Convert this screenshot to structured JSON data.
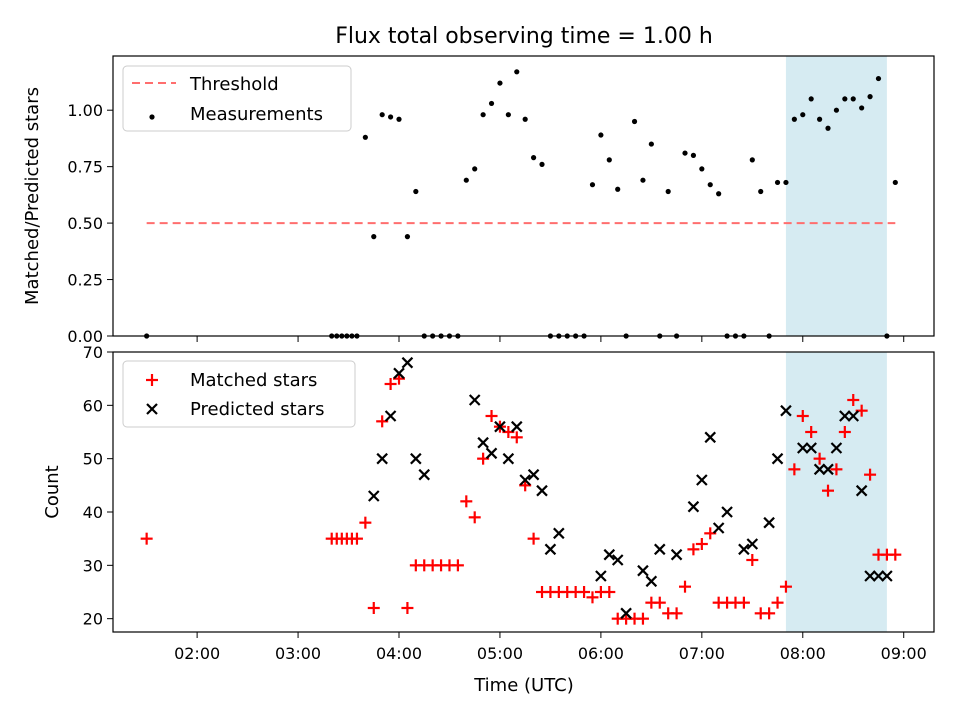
{
  "figure": {
    "title": "Flux total observing time = 1.00 h",
    "xlabel": "Time (UTC)"
  },
  "colors": {
    "threshold": "#ff6e6e",
    "measurement": "#000000",
    "matched": "#ff0000",
    "predicted": "#000000",
    "highlight": "#add8e6"
  },
  "chart_data": [
    {
      "type": "scatter",
      "title": "Flux total observing time = 1.00 h",
      "ylabel": "Matched/Predicted stars",
      "xlim": [
        "01:10",
        "09:18"
      ],
      "ylim": [
        0,
        1.24
      ],
      "x_ticks": [],
      "y_ticks": [
        0.0,
        0.25,
        0.5,
        0.75,
        1.0
      ],
      "y_tick_labels": [
        "0.00",
        "0.25",
        "0.50",
        "0.75",
        "1.00"
      ],
      "legend": {
        "placement": "top-left",
        "entries": [
          "Threshold",
          "Measurements"
        ]
      },
      "highlight_span": [
        "07:50",
        "08:50"
      ],
      "threshold": {
        "name": "Threshold",
        "y": 0.5,
        "x_range": [
          "01:30",
          "08:55"
        ]
      },
      "series": [
        {
          "name": "Measurements",
          "x": [
            "01:30",
            "03:20",
            "03:23",
            "03:26",
            "03:29",
            "03:32",
            "03:35",
            "03:40",
            "03:45",
            "03:50",
            "03:55",
            "04:00",
            "04:05",
            "04:10",
            "04:15",
            "04:20",
            "04:25",
            "04:30",
            "04:35",
            "04:40",
            "04:45",
            "04:50",
            "04:55",
            "05:00",
            "05:05",
            "05:10",
            "05:15",
            "05:20",
            "05:25",
            "05:30",
            "05:35",
            "05:40",
            "05:45",
            "05:50",
            "05:55",
            "06:00",
            "06:05",
            "06:10",
            "06:15",
            "06:20",
            "06:25",
            "06:30",
            "06:35",
            "06:40",
            "06:45",
            "06:50",
            "06:55",
            "07:00",
            "07:05",
            "07:10",
            "07:15",
            "07:20",
            "07:25",
            "07:30",
            "07:35",
            "07:40",
            "07:45",
            "07:50",
            "07:55",
            "08:00",
            "08:05",
            "08:10",
            "08:15",
            "08:20",
            "08:25",
            "08:30",
            "08:35",
            "08:40",
            "08:45",
            "08:50",
            "08:55"
          ],
          "y": [
            0,
            0,
            0,
            0,
            0,
            0,
            0,
            0.88,
            0.44,
            0.98,
            0.97,
            0.96,
            0.44,
            0.64,
            0,
            0,
            0,
            0,
            0,
            0.69,
            0.74,
            0.98,
            1.03,
            1.12,
            0.98,
            1.17,
            0.96,
            0.79,
            0.76,
            0,
            0,
            0,
            0,
            0,
            0.67,
            0.89,
            0.78,
            0.65,
            0,
            0.95,
            0.69,
            0.85,
            0,
            0.64,
            0,
            0.81,
            0.8,
            0.74,
            0.67,
            0.63,
            0,
            0,
            0,
            0.78,
            0.64,
            0,
            0.68,
            0.68,
            0.96,
            0.98,
            1.05,
            0.96,
            0.92,
            1.0,
            1.05,
            1.05,
            1.01,
            1.06,
            1.14,
            0,
            0.68
          ]
        }
      ]
    },
    {
      "type": "scatter",
      "ylabel": "Count",
      "xlabel": "Time (UTC)",
      "xlim": [
        "01:10",
        "09:18"
      ],
      "ylim": [
        17.5,
        70
      ],
      "x_ticks": [
        "02:00",
        "03:00",
        "04:00",
        "05:00",
        "06:00",
        "07:00",
        "08:00",
        "09:00"
      ],
      "y_ticks": [
        20,
        30,
        40,
        50,
        60,
        70
      ],
      "y_tick_labels": [
        "20",
        "30",
        "40",
        "50",
        "60",
        "70"
      ],
      "legend": {
        "placement": "top-left",
        "entries": [
          "Matched stars",
          "Predicted stars"
        ]
      },
      "highlight_span": [
        "07:50",
        "08:50"
      ],
      "series": [
        {
          "name": "Matched stars",
          "marker": "plus",
          "x": [
            "01:30",
            "03:20",
            "03:23",
            "03:26",
            "03:29",
            "03:32",
            "03:35",
            "03:40",
            "03:45",
            "03:50",
            "03:55",
            "04:00",
            "04:05",
            "04:10",
            "04:15",
            "04:20",
            "04:25",
            "04:30",
            "04:35",
            "04:40",
            "04:45",
            "04:50",
            "04:55",
            "05:00",
            "05:05",
            "05:10",
            "05:15",
            "05:20",
            "05:25",
            "05:30",
            "05:35",
            "05:40",
            "05:45",
            "05:50",
            "05:55",
            "06:00",
            "06:05",
            "06:10",
            "06:15",
            "06:20",
            "06:25",
            "06:30",
            "06:35",
            "06:40",
            "06:45",
            "06:50",
            "06:55",
            "07:00",
            "07:05",
            "07:10",
            "07:15",
            "07:20",
            "07:25",
            "07:30",
            "07:35",
            "07:40",
            "07:45",
            "07:50",
            "07:55",
            "08:00",
            "08:05",
            "08:10",
            "08:15",
            "08:20",
            "08:25",
            "08:30",
            "08:35",
            "08:40",
            "08:45",
            "08:50",
            "08:55"
          ],
          "y": [
            35,
            35,
            35,
            35,
            35,
            35,
            35,
            38,
            22,
            57,
            64,
            65,
            22,
            30,
            30,
            30,
            30,
            30,
            30,
            42,
            39,
            50,
            58,
            56,
            55,
            54,
            45,
            35,
            25,
            25,
            25,
            25,
            25,
            25,
            24,
            25,
            25,
            20,
            20,
            20,
            20,
            23,
            23,
            21,
            21,
            26,
            33,
            34,
            36,
            23,
            23,
            23,
            23,
            31,
            21,
            21,
            23,
            26,
            48,
            58,
            55,
            50,
            44,
            48,
            55,
            61,
            59,
            47,
            32,
            32,
            32
          ]
        },
        {
          "name": "Predicted stars",
          "marker": "x",
          "x": [
            "03:45",
            "03:50",
            "03:55",
            "04:00",
            "04:05",
            "04:10",
            "04:15",
            "04:45",
            "04:50",
            "04:55",
            "05:00",
            "05:05",
            "05:10",
            "05:15",
            "05:20",
            "05:25",
            "05:30",
            "05:35",
            "06:00",
            "06:05",
            "06:10",
            "06:15",
            "06:25",
            "06:30",
            "06:35",
            "06:45",
            "06:55",
            "07:00",
            "07:05",
            "07:10",
            "07:15",
            "07:25",
            "07:30",
            "07:40",
            "07:45",
            "07:50",
            "08:00",
            "08:05",
            "08:10",
            "08:15",
            "08:20",
            "08:25",
            "08:30",
            "08:35",
            "08:40",
            "08:45",
            "08:50"
          ],
          "y": [
            43,
            50,
            58,
            66,
            68,
            50,
            47,
            61,
            53,
            51,
            56,
            50,
            56,
            46,
            47,
            44,
            33,
            36,
            28,
            32,
            31,
            21,
            29,
            27,
            33,
            32,
            41,
            46,
            54,
            37,
            40,
            33,
            34,
            38,
            50,
            59,
            52,
            52,
            48,
            48,
            52,
            58,
            58,
            44,
            28,
            28,
            28
          ]
        }
      ]
    }
  ]
}
